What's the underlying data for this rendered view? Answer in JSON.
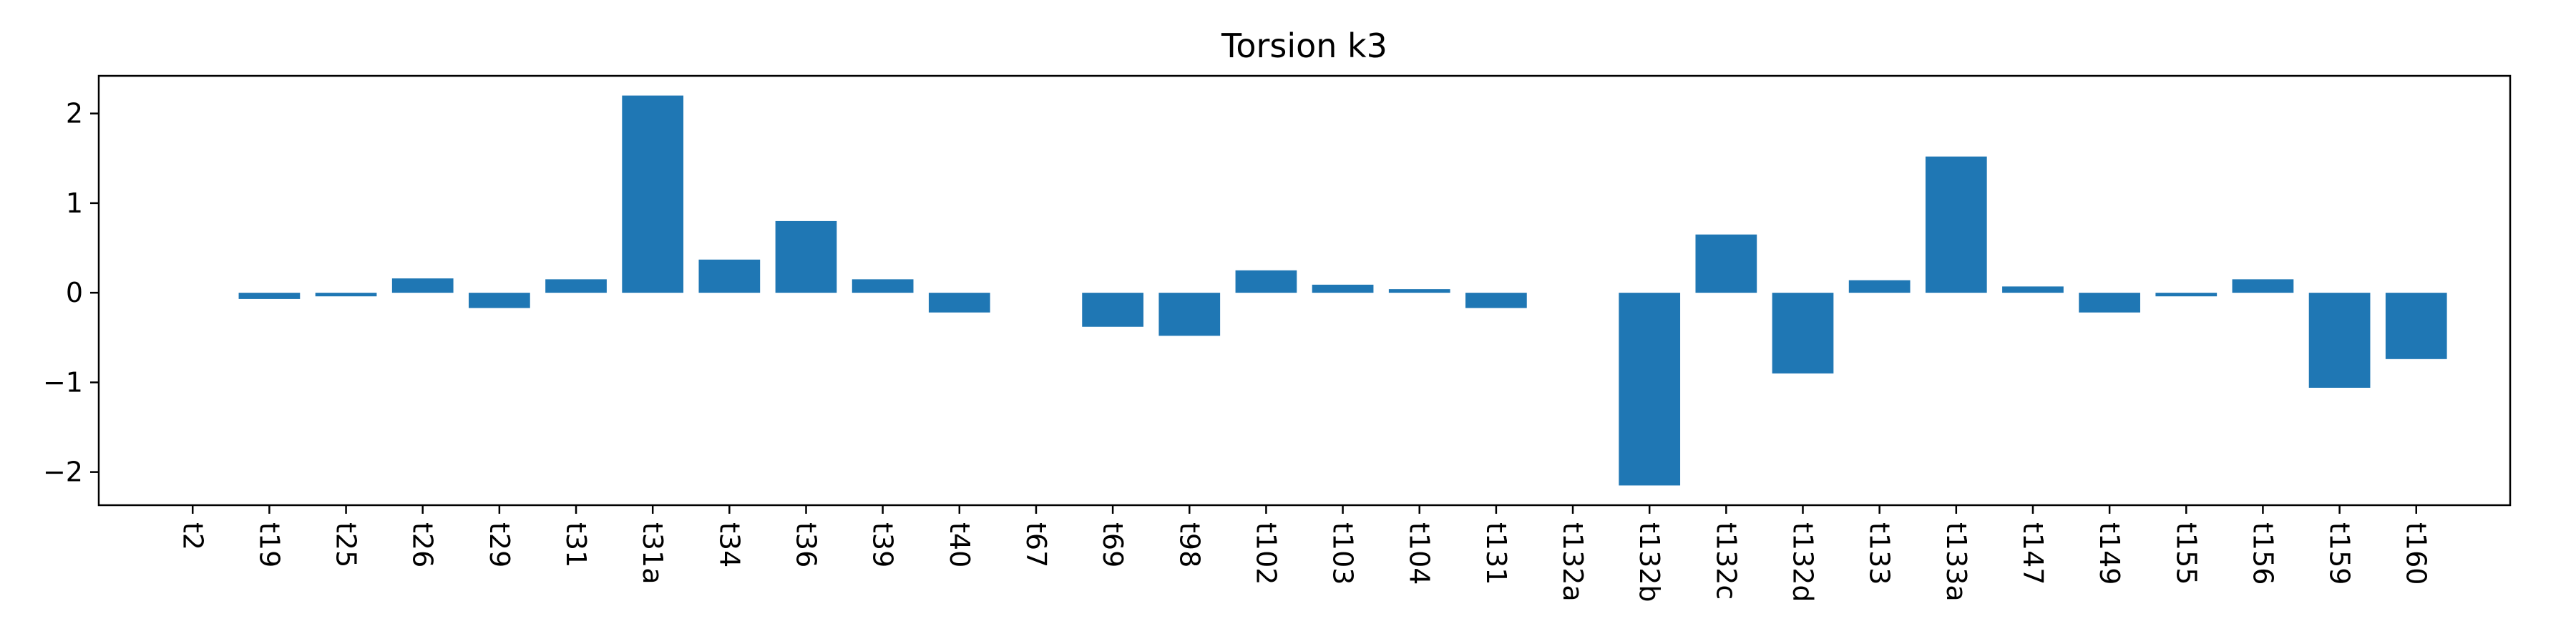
{
  "chart_data": {
    "type": "bar",
    "title": "Torsion k3",
    "xlabel": "",
    "ylabel": "",
    "categories": [
      "t2",
      "t19",
      "t25",
      "t26",
      "t29",
      "t31",
      "t31a",
      "t34",
      "t36",
      "t39",
      "t40",
      "t67",
      "t69",
      "t98",
      "t102",
      "t103",
      "t104",
      "t131",
      "t132a",
      "t132b",
      "t132c",
      "t132d",
      "t133",
      "t133a",
      "t147",
      "t149",
      "t155",
      "t156",
      "t159",
      "t160"
    ],
    "values": [
      0.0,
      -0.07,
      -0.04,
      0.16,
      -0.17,
      0.15,
      2.2,
      0.37,
      0.8,
      0.15,
      -0.22,
      0.0,
      -0.38,
      -0.48,
      0.25,
      0.09,
      0.04,
      -0.17,
      0.0,
      -2.15,
      0.65,
      -0.9,
      0.14,
      1.52,
      0.07,
      -0.22,
      -0.04,
      0.15,
      -1.06,
      -0.74
    ],
    "ylim": [
      -2.37,
      2.42
    ],
    "yticks": [
      -2,
      -1,
      0,
      1,
      2
    ],
    "ytick_labels": [
      "−2",
      "−1",
      "0",
      "1",
      "2"
    ],
    "x_tick_rotation": "vertical",
    "grid": false,
    "legend": "none",
    "bar_color": "#1f77b4"
  }
}
